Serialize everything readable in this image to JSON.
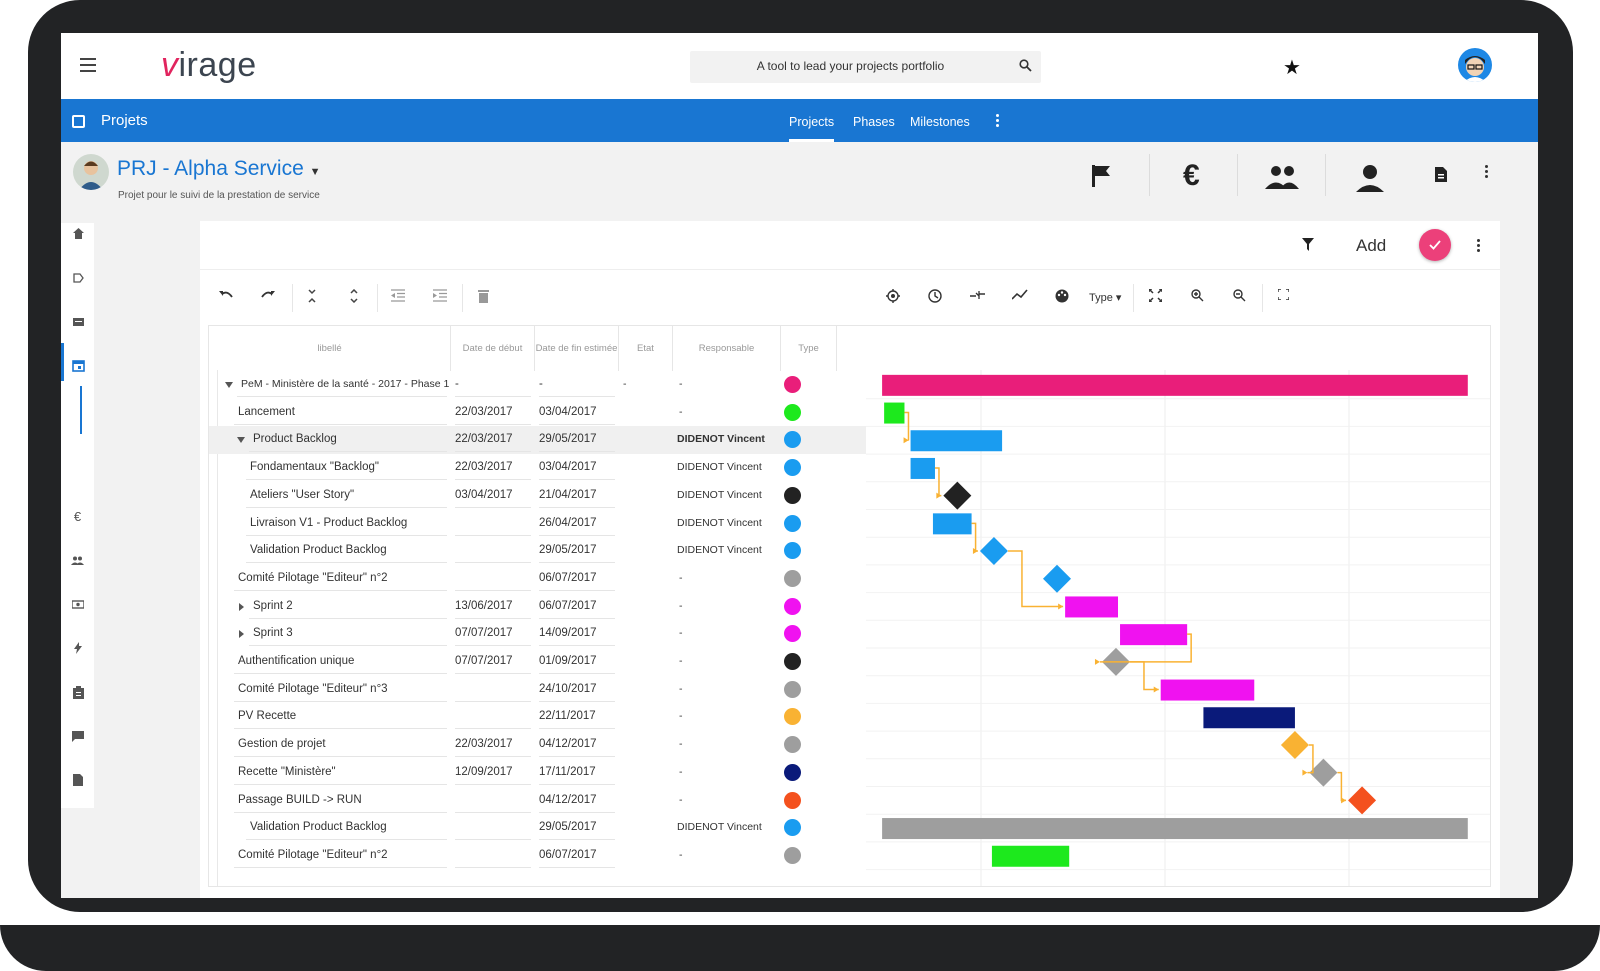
{
  "app": {
    "search_placeholder": "A tool to lead your projects portfolio",
    "logo_prefix": "v",
    "logo_rest": "irage"
  },
  "bluebar": {
    "title": "Projets",
    "tabs": [
      {
        "label": "Projects",
        "active": true
      },
      {
        "label": "Phases",
        "active": false
      },
      {
        "label": "Milestones",
        "active": false
      }
    ]
  },
  "project": {
    "title": "PRJ - Alpha Service",
    "subtitle": "Projet pour le suivi de la prestation de service",
    "header_icons": [
      "flag-icon",
      "euro-icon",
      "group-icon",
      "person-icon",
      "document-icon",
      "more-vert-icon"
    ]
  },
  "sidebar": {
    "icons": [
      "home-icon",
      "label-icon",
      "card-icon",
      "calendar-icon",
      "euro-icon",
      "group-icon",
      "money-icon",
      "flash-icon",
      "clipboard-icon",
      "chat-icon",
      "file-icon"
    ],
    "euro_glyph": "€"
  },
  "panel": {
    "add_label": "Add",
    "type_label": "Type",
    "toolbar_left": [
      "undo-icon",
      "redo-icon",
      "collapse-icon",
      "expand-icon",
      "outdent-icon",
      "indent-icon",
      "delete-icon"
    ],
    "toolbar_right": [
      "target-icon",
      "clock-icon",
      "critical-path-icon",
      "trend-icon",
      "palette-icon",
      "fit-icon",
      "zoom-in-icon",
      "zoom-out-icon",
      "fullscreen-icon"
    ]
  },
  "columns": {
    "label": "libellé",
    "start": "Date de début",
    "end": "Date de fin estimée",
    "state": "Etat",
    "owner": "Responsable",
    "type": "Type"
  },
  "rows": [
    {
      "label": "PeM - Ministère de la santé - 2017 - Phase 1",
      "start": "-",
      "end": "-",
      "state": "-",
      "owner": "-",
      "color": "#e91e7a",
      "level": 0,
      "toggle": "down"
    },
    {
      "label": "Lancement",
      "start": "22/03/2017",
      "end": "03/04/2017",
      "state": "",
      "owner": "-",
      "color": "#1de91d",
      "level": 1,
      "toggle": ""
    },
    {
      "label": "Product Backlog",
      "start": "22/03/2017",
      "end": "29/05/2017",
      "state": "",
      "owner": "DIDENOT Vincent",
      "color": "#1a9cf0",
      "level": 1,
      "toggle": "down"
    },
    {
      "label": "Fondamentaux \"Backlog\"",
      "start": "22/03/2017",
      "end": "03/04/2017",
      "state": "",
      "owner": "DIDENOT Vincent",
      "color": "#1a9cf0",
      "level": 2,
      "toggle": ""
    },
    {
      "label": "Ateliers \"User Story\"",
      "start": "03/04/2017",
      "end": "21/04/2017",
      "state": "",
      "owner": "DIDENOT Vincent",
      "color": "#222222",
      "level": 2,
      "toggle": ""
    },
    {
      "label": "Livraison V1 - Product Backlog",
      "start": "",
      "end": "26/04/2017",
      "state": "",
      "owner": "DIDENOT Vincent",
      "color": "#1a9cf0",
      "level": 2,
      "toggle": ""
    },
    {
      "label": "Validation Product Backlog",
      "start": "",
      "end": "29/05/2017",
      "state": "",
      "owner": "DIDENOT Vincent",
      "color": "#1a9cf0",
      "level": 2,
      "toggle": ""
    },
    {
      "label": "Comité Pilotage \"Editeur\" n°2",
      "start": "",
      "end": "06/07/2017",
      "state": "",
      "owner": "-",
      "color": "#9e9e9e",
      "level": 1,
      "toggle": ""
    },
    {
      "label": "Sprint 2",
      "start": "13/06/2017",
      "end": "06/07/2017",
      "state": "",
      "owner": "-",
      "color": "#f012f0",
      "level": 1,
      "toggle": "right"
    },
    {
      "label": "Sprint 3",
      "start": "07/07/2017",
      "end": "14/09/2017",
      "state": "",
      "owner": "-",
      "color": "#f012f0",
      "level": 1,
      "toggle": "right"
    },
    {
      "label": "Authentification unique",
      "start": "07/07/2017",
      "end": "01/09/2017",
      "state": "",
      "owner": "-",
      "color": "#222222",
      "level": 1,
      "toggle": ""
    },
    {
      "label": "Comité Pilotage \"Editeur\" n°3",
      "start": "",
      "end": "24/10/2017",
      "state": "",
      "owner": "-",
      "color": "#9e9e9e",
      "level": 1,
      "toggle": ""
    },
    {
      "label": "PV Recette",
      "start": "",
      "end": "22/11/2017",
      "state": "",
      "owner": "-",
      "color": "#f9b233",
      "level": 1,
      "toggle": ""
    },
    {
      "label": "Gestion de projet",
      "start": "22/03/2017",
      "end": "04/12/2017",
      "state": "",
      "owner": "-",
      "color": "#9e9e9e",
      "level": 1,
      "toggle": ""
    },
    {
      "label": "Recette \"Ministère\"",
      "start": "12/09/2017",
      "end": "17/11/2017",
      "state": "",
      "owner": "-",
      "color": "#0a1a7a",
      "level": 1,
      "toggle": ""
    },
    {
      "label": "Passage BUILD -> RUN",
      "start": "",
      "end": "04/12/2017",
      "state": "",
      "owner": "-",
      "color": "#f4511e",
      "level": 1,
      "toggle": ""
    },
    {
      "label": "Validation Product Backlog",
      "start": "",
      "end": "29/05/2017",
      "state": "",
      "owner": "DIDENOT Vincent",
      "color": "#1a9cf0",
      "level": 2,
      "toggle": ""
    },
    {
      "label": "Comité Pilotage \"Editeur\" n°2",
      "start": "",
      "end": "06/07/2017",
      "state": "",
      "owner": "-",
      "color": "#9e9e9e",
      "level": 1,
      "toggle": ""
    }
  ],
  "gantt": {
    "range_start": "2017-03-09",
    "range_end": "2017-12-31",
    "items": [
      {
        "row": 0,
        "kind": "bar",
        "start": "2017-03-12",
        "end": "2017-12-25",
        "color": "#e91e7a"
      },
      {
        "row": 1,
        "kind": "bar",
        "start": "2017-03-13",
        "end": "2017-03-23",
        "color": "#1de91d"
      },
      {
        "row": 2,
        "kind": "bar",
        "start": "2017-03-26",
        "end": "2017-05-10",
        "color": "#1a9cf0"
      },
      {
        "row": 3,
        "kind": "bar",
        "start": "2017-03-26",
        "end": "2017-04-07",
        "color": "#1a9cf0"
      },
      {
        "row": 4,
        "kind": "milestone",
        "start": "2017-04-18",
        "color": "#222222"
      },
      {
        "row": 5,
        "kind": "bar",
        "start": "2017-04-06",
        "end": "2017-04-25",
        "color": "#1a9cf0"
      },
      {
        "row": 6,
        "kind": "milestone",
        "start": "2017-05-06",
        "color": "#1a9cf0"
      },
      {
        "row": 7,
        "kind": "milestone",
        "start": "2017-06-06",
        "color": "#1a9cf0"
      },
      {
        "row": 8,
        "kind": "bar",
        "start": "2017-06-10",
        "end": "2017-07-06",
        "color": "#f012f0"
      },
      {
        "row": 9,
        "kind": "bar",
        "start": "2017-07-07",
        "end": "2017-08-09",
        "color": "#f012f0"
      },
      {
        "row": 10,
        "kind": "milestone",
        "start": "2017-07-05",
        "color": "#9e9e9e"
      },
      {
        "row": 11,
        "kind": "bar",
        "start": "2017-07-27",
        "end": "2017-09-11",
        "color": "#f012f0"
      },
      {
        "row": 12,
        "kind": "bar",
        "start": "2017-08-17",
        "end": "2017-10-01",
        "color": "#0a1a7a"
      },
      {
        "row": 13,
        "kind": "milestone",
        "start": "2017-10-01",
        "color": "#f9b233"
      },
      {
        "row": 14,
        "kind": "milestone",
        "start": "2017-10-15",
        "color": "#9e9e9e"
      },
      {
        "row": 15,
        "kind": "milestone",
        "start": "2017-11-03",
        "color": "#f4511e"
      },
      {
        "row": 16,
        "kind": "bar",
        "start": "2017-03-12",
        "end": "2017-12-25",
        "color": "#9e9e9e"
      },
      {
        "row": 17,
        "kind": "bar",
        "start": "2017-05-05",
        "end": "2017-06-12",
        "color": "#1de91d"
      }
    ]
  }
}
